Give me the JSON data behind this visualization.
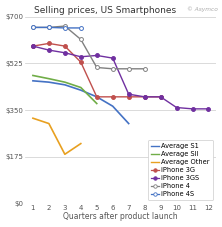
{
  "title": "Selling prices, US Smartphones",
  "watermark": "© Asymco",
  "xlabel": "Quarters after product launch",
  "ylim": [
    0,
    700
  ],
  "yticks": [
    0,
    175,
    350,
    525,
    700
  ],
  "ytick_labels": [
    "$0",
    "$175",
    "$350",
    "$525",
    "$700"
  ],
  "xticks": [
    1,
    2,
    3,
    4,
    5,
    6,
    7,
    8,
    9,
    10,
    11,
    12
  ],
  "series": {
    "Average S1": {
      "x": [
        1,
        2,
        3,
        4,
        5,
        6,
        7
      ],
      "y": [
        460,
        455,
        445,
        425,
        400,
        365,
        300
      ],
      "color": "#4472C4",
      "linestyle": "-",
      "marker": null,
      "linewidth": 1.2
    },
    "Average SII": {
      "x": [
        1,
        2,
        3,
        4,
        5
      ],
      "y": [
        480,
        468,
        455,
        435,
        375
      ],
      "color": "#70AD47",
      "linestyle": "-",
      "marker": null,
      "linewidth": 1.2
    },
    "Average Other": {
      "x": [
        1,
        2,
        3,
        4
      ],
      "y": [
        320,
        300,
        185,
        225
      ],
      "color": "#E8A020",
      "linestyle": "-",
      "marker": null,
      "linewidth": 1.2
    },
    "iPhone 3G": {
      "x": [
        1,
        2,
        3,
        4,
        5,
        6,
        7,
        8,
        9
      ],
      "y": [
        590,
        600,
        590,
        530,
        400,
        400,
        400,
        400,
        400
      ],
      "color": "#C0504D",
      "linestyle": "-",
      "marker": "o",
      "markersize": 2.8,
      "linewidth": 1.0,
      "markerfacecolor": "#C0504D"
    },
    "iPhone 3GS": {
      "x": [
        1,
        2,
        3,
        4,
        5,
        6,
        7,
        8,
        9,
        10,
        11,
        12
      ],
      "y": [
        590,
        575,
        565,
        550,
        555,
        545,
        410,
        400,
        400,
        360,
        355,
        355
      ],
      "color": "#7030A0",
      "linestyle": "-",
      "marker": "o",
      "markersize": 2.8,
      "linewidth": 1.0,
      "markerfacecolor": "#7030A0"
    },
    "iPhone 4": {
      "x": [
        1,
        2,
        3,
        4,
        5,
        6,
        7,
        8
      ],
      "y": [
        660,
        660,
        665,
        615,
        510,
        505,
        505,
        505
      ],
      "color": "#808080",
      "linestyle": "-",
      "marker": "o",
      "markersize": 2.8,
      "linewidth": 1.0,
      "markerfacecolor": "white"
    },
    "iPhone 4S": {
      "x": [
        1,
        2,
        3,
        4
      ],
      "y": [
        660,
        660,
        658,
        658
      ],
      "color": "#4472C4",
      "linestyle": "-",
      "marker": "o",
      "markersize": 2.8,
      "linewidth": 1.0,
      "markerfacecolor": "white"
    }
  },
  "background_color": "#FFFFFF",
  "grid_color": "#CCCCCC",
  "title_fontsize": 6.5,
  "label_fontsize": 5.5,
  "tick_fontsize": 5.0,
  "legend_fontsize": 4.8
}
